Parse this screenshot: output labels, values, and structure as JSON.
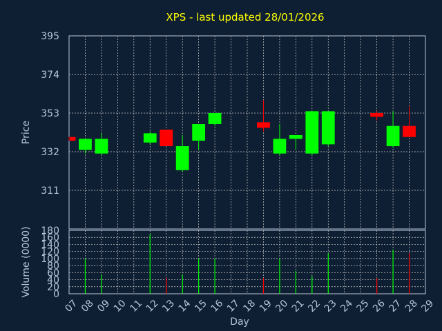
{
  "chart_data": {
    "type": "candlestick",
    "title": "XPS - last updated 28/01/2026",
    "colors": {
      "background": "#0f1f33",
      "text": "#b4c6dc",
      "title": "#ffff00",
      "grid": "#d0d0d0",
      "up": "#00ff00",
      "down": "#ff0000"
    },
    "price_panel": {
      "ylabel": "Price",
      "ylim": [
        290,
        395
      ],
      "yticks": [
        "395",
        "374",
        "353",
        "332",
        "311"
      ],
      "ytick_values": [
        395,
        374,
        353,
        332,
        311
      ],
      "grid": true
    },
    "volume_panel": {
      "ylabel": "Volume (0000)",
      "ylim": [
        0,
        180
      ],
      "yticks": [
        "180",
        "160",
        "140",
        "120",
        "100",
        "80",
        "60",
        "40",
        "20",
        "0"
      ],
      "ytick_values": [
        180,
        160,
        140,
        120,
        100,
        80,
        60,
        40,
        20,
        0
      ],
      "grid": true
    },
    "xlabel": "Day",
    "days": [
      "07",
      "08",
      "09",
      "10",
      "11",
      "12",
      "13",
      "14",
      "15",
      "16",
      "17",
      "18",
      "19",
      "20",
      "21",
      "22",
      "23",
      "24",
      "25",
      "26",
      "27",
      "28",
      "29"
    ],
    "candles": [
      {
        "day": "07",
        "open": 340,
        "high": 340,
        "low": 338,
        "close": 338,
        "volume": 0
      },
      {
        "day": "08",
        "open": 333,
        "high": 339,
        "low": 331,
        "close": 339,
        "volume": 100
      },
      {
        "day": "09",
        "open": 331,
        "high": 342,
        "low": 330,
        "close": 339,
        "volume": 55
      },
      {
        "day": "12",
        "open": 337,
        "high": 343,
        "low": 336,
        "close": 342,
        "volume": 170
      },
      {
        "day": "13",
        "open": 344,
        "high": 344,
        "low": 335,
        "close": 335,
        "volume": 45
      },
      {
        "day": "14",
        "open": 322,
        "high": 341,
        "low": 321,
        "close": 335,
        "volume": 55
      },
      {
        "day": "15",
        "open": 338,
        "high": 347,
        "low": 333,
        "close": 347,
        "volume": 100
      },
      {
        "day": "16",
        "open": 347,
        "high": 353,
        "low": 346,
        "close": 353,
        "volume": 100
      },
      {
        "day": "19",
        "open": 348,
        "high": 360,
        "low": 343,
        "close": 345,
        "volume": 45
      },
      {
        "day": "20",
        "open": 331,
        "high": 347,
        "low": 330,
        "close": 339,
        "volume": 100
      },
      {
        "day": "21",
        "open": 339,
        "high": 341,
        "low": 333,
        "close": 341,
        "volume": 65
      },
      {
        "day": "22",
        "open": 331,
        "high": 354,
        "low": 330,
        "close": 354,
        "volume": 50
      },
      {
        "day": "23",
        "open": 336,
        "high": 354,
        "low": 335,
        "close": 354,
        "volume": 115
      },
      {
        "day": "26",
        "open": 353,
        "high": 354,
        "low": 349,
        "close": 351,
        "volume": 45
      },
      {
        "day": "27",
        "open": 335,
        "high": 354,
        "low": 334,
        "close": 346,
        "volume": 125
      },
      {
        "day": "28",
        "open": 346,
        "high": 357,
        "low": 340,
        "close": 340,
        "volume": 115
      }
    ]
  }
}
